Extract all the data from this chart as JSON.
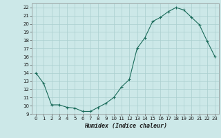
{
  "x": [
    0,
    1,
    2,
    3,
    4,
    5,
    6,
    7,
    8,
    9,
    10,
    11,
    12,
    13,
    14,
    15,
    16,
    17,
    18,
    19,
    20,
    21,
    22,
    23
  ],
  "y": [
    14.0,
    12.7,
    10.1,
    10.1,
    9.8,
    9.7,
    9.3,
    9.3,
    9.8,
    10.3,
    11.0,
    12.3,
    13.2,
    17.0,
    18.3,
    20.3,
    20.8,
    21.5,
    22.0,
    21.7,
    20.8,
    19.9,
    17.9,
    16.0
  ],
  "line_color": "#1a6b5a",
  "marker": "+",
  "marker_size": 3,
  "bg_color": "#cce8e8",
  "grid_color": "#aacfcf",
  "xlabel": "Humidex (Indice chaleur)",
  "xlim": [
    -0.5,
    23.5
  ],
  "ylim": [
    9,
    22.5
  ],
  "yticks": [
    9,
    10,
    11,
    12,
    13,
    14,
    15,
    16,
    17,
    18,
    19,
    20,
    21,
    22
  ],
  "xticks": [
    0,
    1,
    2,
    3,
    4,
    5,
    6,
    7,
    8,
    9,
    10,
    11,
    12,
    13,
    14,
    15,
    16,
    17,
    18,
    19,
    20,
    21,
    22,
    23
  ]
}
